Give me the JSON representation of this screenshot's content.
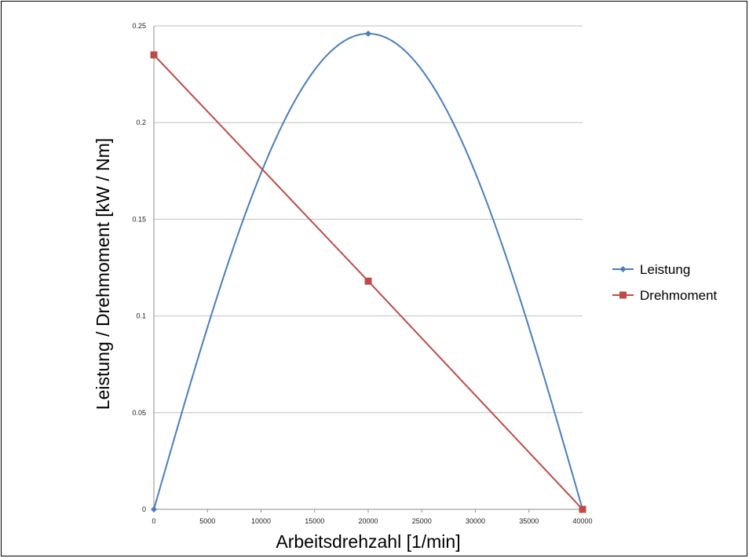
{
  "chart_data": {
    "type": "line",
    "title": "",
    "xlabel": "Arbeitsdrehzahl [1/min]",
    "ylabel": "Leistung / Drehmoment [kW / Nm]",
    "xlim": [
      0,
      40000
    ],
    "ylim": [
      0,
      0.25
    ],
    "x_ticks": [
      "0",
      "5000",
      "10000",
      "15000",
      "20000",
      "25000",
      "30000",
      "35000",
      "40000"
    ],
    "y_ticks": [
      "0",
      "0.05",
      "0.1",
      "0.15",
      "0.2",
      "0.25"
    ],
    "grid": "horizontal",
    "legend": "right",
    "series": [
      {
        "name": "Leistung",
        "color": "#4a7ebb",
        "marker": "diamond",
        "smooth": true,
        "x": [
          0,
          20000,
          40000
        ],
        "values": [
          0,
          0.246,
          0
        ]
      },
      {
        "name": "Drehmoment",
        "color": "#be4b48",
        "marker": "square",
        "smooth": false,
        "x": [
          0,
          20000,
          40000
        ],
        "values": [
          0.235,
          0.118,
          0
        ]
      }
    ]
  }
}
